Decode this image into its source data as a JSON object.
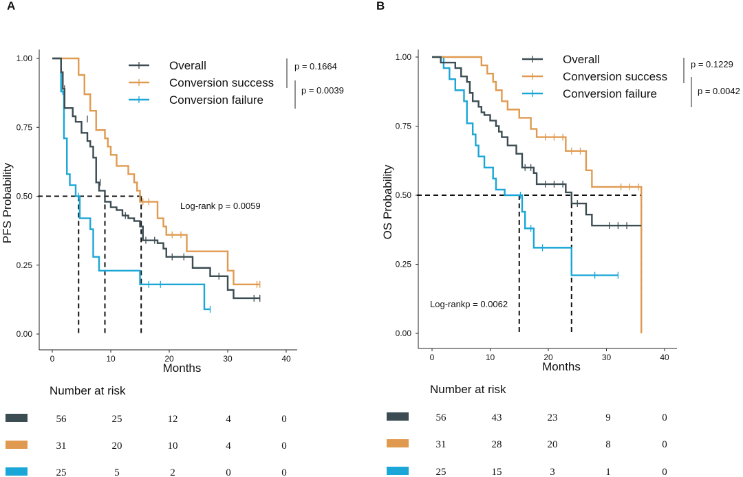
{
  "colors": {
    "overall": "#3b4c52",
    "success": "#e09a50",
    "failure": "#1aa6d6",
    "axis": "#222222",
    "median": "#111111"
  },
  "legend_labels": [
    "Overall",
    "Conversion success",
    "Conversion failure"
  ],
  "risk_title": "Number at risk",
  "chart_data": [
    {
      "panel_label": "A",
      "type": "line",
      "subtype": "kaplan-meier",
      "xlabel": "Months",
      "ylabel": "PFS Probability",
      "xlim": [
        0,
        40
      ],
      "ylim": [
        0,
        1
      ],
      "x_ticks": [
        "0",
        "10",
        "20",
        "30",
        "40"
      ],
      "y_ticks": [
        "0.00",
        "0.25",
        "0.50",
        "0.75",
        "1.00"
      ],
      "pvalues": [
        "p = 0.1664",
        "p = 0.0039"
      ],
      "logrank": "Log-rank p = 0.0059",
      "medians": [
        {
          "group": "failure",
          "x": 4.5
        },
        {
          "group": "overall",
          "x": 9.0
        },
        {
          "group": "success",
          "x": 15.2
        }
      ],
      "series": [
        {
          "name": "Overall",
          "key": "overall",
          "steps": [
            [
              0,
              1.0
            ],
            [
              1.5,
              0.95
            ],
            [
              1.8,
              0.89
            ],
            [
              2.1,
              0.82
            ],
            [
              3.5,
              0.79
            ],
            [
              4.0,
              0.77
            ],
            [
              5.0,
              0.73
            ],
            [
              6.0,
              0.7
            ],
            [
              6.5,
              0.68
            ],
            [
              7.0,
              0.64
            ],
            [
              7.5,
              0.55
            ],
            [
              8.0,
              0.52
            ],
            [
              9.0,
              0.48
            ],
            [
              10.0,
              0.46
            ],
            [
              11.0,
              0.45
            ],
            [
              12.0,
              0.43
            ],
            [
              13.0,
              0.42
            ],
            [
              14.0,
              0.41
            ],
            [
              15.0,
              0.39
            ],
            [
              15.5,
              0.34
            ],
            [
              18.0,
              0.33
            ],
            [
              19.0,
              0.31
            ],
            [
              19.5,
              0.28
            ],
            [
              24.0,
              0.24
            ],
            [
              27.0,
              0.21
            ],
            [
              30.0,
              0.16
            ],
            [
              31.0,
              0.13
            ],
            [
              35.5,
              0.13
            ]
          ],
          "censor": [
            [
              2.1,
              0.89
            ],
            [
              6.0,
              0.78
            ],
            [
              8.2,
              0.55
            ],
            [
              12.5,
              0.43
            ],
            [
              16.0,
              0.34
            ],
            [
              17.5,
              0.34
            ],
            [
              20.5,
              0.28
            ],
            [
              22.5,
              0.28
            ],
            [
              28.5,
              0.21
            ],
            [
              34.5,
              0.13
            ],
            [
              35.5,
              0.13
            ]
          ]
        },
        {
          "name": "Conversion success",
          "key": "success",
          "steps": [
            [
              0,
              1.0
            ],
            [
              4.0,
              1.0
            ],
            [
              4.5,
              0.94
            ],
            [
              5.5,
              0.87
            ],
            [
              6.5,
              0.81
            ],
            [
              7.5,
              0.74
            ],
            [
              9.0,
              0.71
            ],
            [
              9.5,
              0.68
            ],
            [
              10.0,
              0.65
            ],
            [
              11.0,
              0.61
            ],
            [
              13.0,
              0.58
            ],
            [
              14.0,
              0.55
            ],
            [
              14.5,
              0.52
            ],
            [
              15.0,
              0.48
            ],
            [
              18.0,
              0.42
            ],
            [
              19.0,
              0.39
            ],
            [
              19.5,
              0.36
            ],
            [
              23.0,
              0.3
            ],
            [
              30.0,
              0.23
            ],
            [
              31.0,
              0.18
            ],
            [
              35.5,
              0.18
            ]
          ],
          "censor": [
            [
              15.5,
              0.48
            ],
            [
              16.5,
              0.48
            ],
            [
              20.5,
              0.36
            ],
            [
              22.0,
              0.36
            ],
            [
              35.0,
              0.18
            ],
            [
              35.5,
              0.18
            ]
          ]
        },
        {
          "name": "Conversion failure",
          "key": "failure",
          "steps": [
            [
              0,
              1.0
            ],
            [
              1.0,
              1.0
            ],
            [
              1.5,
              0.88
            ],
            [
              2.0,
              0.71
            ],
            [
              2.5,
              0.58
            ],
            [
              3.0,
              0.54
            ],
            [
              4.0,
              0.5
            ],
            [
              4.7,
              0.42
            ],
            [
              6.5,
              0.38
            ],
            [
              7.0,
              0.28
            ],
            [
              8.0,
              0.23
            ],
            [
              15.0,
              0.18
            ],
            [
              26.0,
              0.09
            ],
            [
              27.0,
              0.09
            ]
          ],
          "censor": [
            [
              1.8,
              0.88
            ],
            [
              4.5,
              0.5
            ],
            [
              16.5,
              0.18
            ],
            [
              18.5,
              0.18
            ],
            [
              27.0,
              0.09
            ]
          ]
        }
      ],
      "number_at_risk": {
        "times": [
          0,
          10,
          20,
          30,
          40
        ],
        "rows": [
          {
            "key": "overall",
            "values": [
              56,
              25,
              12,
              4,
              0
            ]
          },
          {
            "key": "success",
            "values": [
              31,
              20,
              10,
              4,
              0
            ]
          },
          {
            "key": "failure",
            "values": [
              25,
              5,
              2,
              0,
              0
            ]
          }
        ]
      }
    },
    {
      "panel_label": "B",
      "type": "line",
      "subtype": "kaplan-meier",
      "xlabel": "Months",
      "ylabel": "OS Probability",
      "xlim": [
        0,
        40
      ],
      "ylim": [
        0,
        1
      ],
      "x_ticks": [
        "0",
        "10",
        "20",
        "30",
        "40"
      ],
      "y_ticks": [
        "0.00",
        "0.25",
        "0.50",
        "0.75",
        "1.00"
      ],
      "pvalues": [
        "p = 0.1229",
        "p = 0.0042"
      ],
      "logrank": "Log-rankp = 0.0062",
      "medians": [
        {
          "group": "failure",
          "x": 15.0
        },
        {
          "group": "overall",
          "x": 24.0
        },
        {
          "group": "success",
          "x": 36.0
        }
      ],
      "series": [
        {
          "name": "Overall",
          "key": "overall",
          "steps": [
            [
              0,
              1.0
            ],
            [
              1.0,
              1.0
            ],
            [
              1.5,
              0.98
            ],
            [
              4.0,
              0.96
            ],
            [
              5.0,
              0.93
            ],
            [
              6.0,
              0.91
            ],
            [
              6.5,
              0.87
            ],
            [
              7.0,
              0.84
            ],
            [
              8.0,
              0.82
            ],
            [
              8.5,
              0.8
            ],
            [
              9.0,
              0.79
            ],
            [
              10.0,
              0.77
            ],
            [
              11.0,
              0.75
            ],
            [
              11.5,
              0.73
            ],
            [
              12.0,
              0.71
            ],
            [
              13.0,
              0.68
            ],
            [
              14.5,
              0.65
            ],
            [
              15.5,
              0.6
            ],
            [
              17.5,
              0.58
            ],
            [
              18.0,
              0.54
            ],
            [
              23.0,
              0.51
            ],
            [
              24.0,
              0.47
            ],
            [
              26.5,
              0.43
            ],
            [
              27.5,
              0.39
            ],
            [
              36.0,
              0.39
            ]
          ],
          "censor": [
            [
              16.0,
              0.6
            ],
            [
              17.0,
              0.6
            ],
            [
              19.5,
              0.54
            ],
            [
              21.0,
              0.54
            ],
            [
              22.5,
              0.54
            ],
            [
              25.0,
              0.47
            ],
            [
              30.5,
              0.39
            ],
            [
              32.0,
              0.39
            ],
            [
              33.5,
              0.39
            ]
          ]
        },
        {
          "name": "Conversion success",
          "key": "success",
          "steps": [
            [
              0,
              1.0
            ],
            [
              8.0,
              1.0
            ],
            [
              8.5,
              0.97
            ],
            [
              9.5,
              0.94
            ],
            [
              10.5,
              0.91
            ],
            [
              11.0,
              0.88
            ],
            [
              12.0,
              0.84
            ],
            [
              13.0,
              0.81
            ],
            [
              15.0,
              0.78
            ],
            [
              17.0,
              0.74
            ],
            [
              18.0,
              0.71
            ],
            [
              23.0,
              0.66
            ],
            [
              26.5,
              0.59
            ],
            [
              27.5,
              0.53
            ],
            [
              36.0,
              0.53
            ],
            [
              36.0,
              0.0
            ]
          ],
          "censor": [
            [
              19.5,
              0.71
            ],
            [
              21.0,
              0.71
            ],
            [
              22.5,
              0.71
            ],
            [
              24.0,
              0.66
            ],
            [
              25.5,
              0.66
            ],
            [
              32.5,
              0.53
            ],
            [
              34.0,
              0.53
            ],
            [
              35.5,
              0.53
            ]
          ]
        },
        {
          "name": "Conversion failure",
          "key": "failure",
          "steps": [
            [
              0,
              1.0
            ],
            [
              1.0,
              1.0
            ],
            [
              2.0,
              0.96
            ],
            [
              3.0,
              0.92
            ],
            [
              4.0,
              0.88
            ],
            [
              5.5,
              0.84
            ],
            [
              6.0,
              0.76
            ],
            [
              7.0,
              0.72
            ],
            [
              7.5,
              0.68
            ],
            [
              8.0,
              0.64
            ],
            [
              9.0,
              0.6
            ],
            [
              10.5,
              0.56
            ],
            [
              11.0,
              0.52
            ],
            [
              12.5,
              0.5
            ],
            [
              15.5,
              0.44
            ],
            [
              16.0,
              0.38
            ],
            [
              17.5,
              0.31
            ],
            [
              24.0,
              0.21
            ],
            [
              32.0,
              0.21
            ]
          ],
          "censor": [
            [
              15.2,
              0.5
            ],
            [
              17.0,
              0.38
            ],
            [
              19.0,
              0.31
            ],
            [
              28.0,
              0.21
            ],
            [
              32.0,
              0.21
            ]
          ]
        }
      ],
      "number_at_risk": {
        "times": [
          0,
          10,
          20,
          30,
          40
        ],
        "rows": [
          {
            "key": "overall",
            "values": [
              56,
              43,
              23,
              9,
              0
            ]
          },
          {
            "key": "success",
            "values": [
              31,
              28,
              20,
              8,
              0
            ]
          },
          {
            "key": "failure",
            "values": [
              25,
              15,
              3,
              1,
              0
            ]
          }
        ]
      }
    }
  ]
}
